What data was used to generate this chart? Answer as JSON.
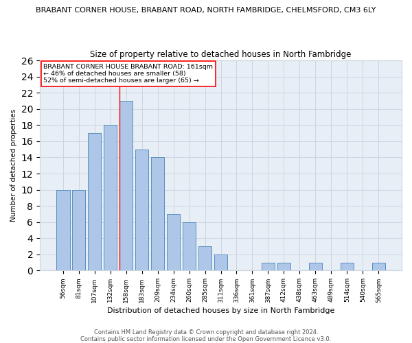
{
  "title_line1": "BRABANT CORNER HOUSE, BRABANT ROAD, NORTH FAMBRIDGE, CHELMSFORD, CM3 6LY",
  "title_line2": "Size of property relative to detached houses in North Fambridge",
  "xlabel": "Distribution of detached houses by size in North Fambridge",
  "ylabel": "Number of detached properties",
  "bar_color": "#aec6e8",
  "bar_edge_color": "#5a8fc0",
  "categories": [
    "56sqm",
    "81sqm",
    "107sqm",
    "132sqm",
    "158sqm",
    "183sqm",
    "209sqm",
    "234sqm",
    "260sqm",
    "285sqm",
    "311sqm",
    "336sqm",
    "361sqm",
    "387sqm",
    "412sqm",
    "438sqm",
    "463sqm",
    "489sqm",
    "514sqm",
    "540sqm",
    "565sqm"
  ],
  "values": [
    10,
    10,
    17,
    18,
    21,
    15,
    14,
    7,
    6,
    3,
    2,
    0,
    0,
    1,
    1,
    0,
    1,
    0,
    1,
    0,
    1
  ],
  "ylim": [
    0,
    26
  ],
  "yticks": [
    0,
    2,
    4,
    6,
    8,
    10,
    12,
    14,
    16,
    18,
    20,
    22,
    24,
    26
  ],
  "property_line_index": 4,
  "annotation_title": "BRABANT CORNER HOUSE BRABANT ROAD: 161sqm",
  "annotation_line2": "← 46% of detached houses are smaller (58)",
  "annotation_line3": "52% of semi-detached houses are larger (65) →",
  "grid_color": "#ccd5e0",
  "bg_color": "#e8eef5",
  "footer_line1": "Contains HM Land Registry data © Crown copyright and database right 2024.",
  "footer_line2": "Contains public sector information licensed under the Open Government Licence v3.0."
}
